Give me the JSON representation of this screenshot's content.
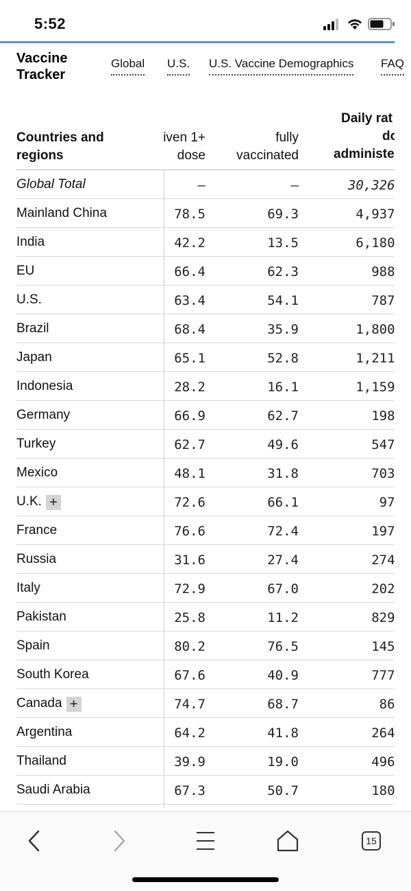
{
  "status": {
    "time": "5:52"
  },
  "header": {
    "title_line1": "Vaccine",
    "title_line2": "Tracker",
    "nav": [
      {
        "label": "Global"
      },
      {
        "label": "U.S."
      },
      {
        "label": "U.S. Vaccine Demographics"
      },
      {
        "label": "FAQ"
      }
    ]
  },
  "table": {
    "headers": {
      "country_line1": "Countries and",
      "country_line2": "regions",
      "dose1_line1": "iven 1+",
      "dose1_line2": "dose",
      "fully_line1": "fully",
      "fully_line2": "vaccinated",
      "daily_line1": "Daily rat",
      "daily_line2": "do",
      "daily_line3": "administe"
    },
    "rows": [
      {
        "country": "Global Total",
        "dose1": "–",
        "fully": "–",
        "daily": "30,326,",
        "plus": false,
        "total": true
      },
      {
        "country": "Mainland China",
        "dose1": "78.5",
        "fully": "69.3",
        "daily": "4,937,",
        "plus": false
      },
      {
        "country": "India",
        "dose1": "42.2",
        "fully": "13.5",
        "daily": "6,180,",
        "plus": false
      },
      {
        "country": "EU",
        "dose1": "66.4",
        "fully": "62.3",
        "daily": "988,",
        "plus": false
      },
      {
        "country": "U.S.",
        "dose1": "63.4",
        "fully": "54.1",
        "daily": "787,",
        "plus": false
      },
      {
        "country": "Brazil",
        "dose1": "68.4",
        "fully": "35.9",
        "daily": "1,800,",
        "plus": false
      },
      {
        "country": "Japan",
        "dose1": "65.1",
        "fully": "52.8",
        "daily": "1,211,",
        "plus": false
      },
      {
        "country": "Indonesia",
        "dose1": "28.2",
        "fully": "16.1",
        "daily": "1,159,",
        "plus": false
      },
      {
        "country": "Germany",
        "dose1": "66.9",
        "fully": "62.7",
        "daily": "198,",
        "plus": false
      },
      {
        "country": "Turkey",
        "dose1": "62.7",
        "fully": "49.6",
        "daily": "547,",
        "plus": false
      },
      {
        "country": "Mexico",
        "dose1": "48.1",
        "fully": "31.8",
        "daily": "703,",
        "plus": false
      },
      {
        "country": "U.K.",
        "dose1": "72.6",
        "fully": "66.1",
        "daily": "97,",
        "plus": true
      },
      {
        "country": "France",
        "dose1": "76.6",
        "fully": "72.4",
        "daily": "197,",
        "plus": false
      },
      {
        "country": "Russia",
        "dose1": "31.6",
        "fully": "27.4",
        "daily": "274,",
        "plus": false
      },
      {
        "country": "Italy",
        "dose1": "72.9",
        "fully": "67.0",
        "daily": "202,",
        "plus": false
      },
      {
        "country": "Pakistan",
        "dose1": "25.8",
        "fully": "11.2",
        "daily": "829,",
        "plus": false
      },
      {
        "country": "Spain",
        "dose1": "80.2",
        "fully": "76.5",
        "daily": "145,",
        "plus": false
      },
      {
        "country": "South Korea",
        "dose1": "67.6",
        "fully": "40.9",
        "daily": "777,",
        "plus": false
      },
      {
        "country": "Canada",
        "dose1": "74.7",
        "fully": "68.7",
        "daily": "86,",
        "plus": true
      },
      {
        "country": "Argentina",
        "dose1": "64.2",
        "fully": "41.8",
        "daily": "264,",
        "plus": false
      },
      {
        "country": "Thailand",
        "dose1": "39.9",
        "fully": "19.0",
        "daily": "496,",
        "plus": false
      },
      {
        "country": "Saudi Arabia",
        "dose1": "67.3",
        "fully": "50.7",
        "daily": "180,",
        "plus": false
      }
    ],
    "plus_symbol": "+"
  },
  "toolbar": {
    "tabs_count": "15",
    "icons": [
      "back-icon",
      "forward-icon",
      "menu-icon",
      "home-icon",
      "tabs-icon"
    ]
  },
  "colors": {
    "accent": "#5a8fe0"
  }
}
